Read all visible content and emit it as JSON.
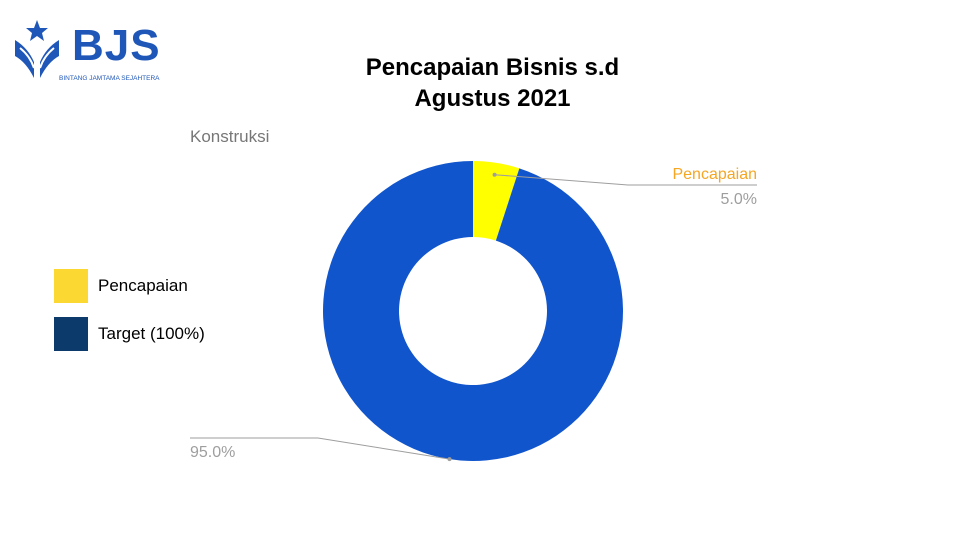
{
  "logo": {
    "text": "BJS",
    "subtext": "BINTANG JAMTAMA SEJAHTERA"
  },
  "title_lines": [
    "Pencapaian Bisnis s.d",
    "Agustus 2021"
  ],
  "chart_data": {
    "type": "pie",
    "subtitle": "Konstruksi",
    "slices": [
      {
        "label": "Pencapaian",
        "value": 5.0,
        "value_label": "5.0%",
        "color": "#ffff00"
      },
      {
        "label": "Target (100%)",
        "value": 95.0,
        "value_label": "95.0%",
        "color": "#1155cc"
      }
    ],
    "donut": true,
    "legend_position": "left",
    "legend": [
      {
        "label": "Pencapaian",
        "color": "#fcd932"
      },
      {
        "label": "Target (100%)",
        "color": "#0b3a6b"
      }
    ],
    "annotations": [
      {
        "slice": "Pencapaian",
        "name_text": "Pencapaian",
        "name_color": "#f5a623",
        "value_text": "5.0%"
      },
      {
        "slice": "Target (100%)",
        "value_text": "95.0%"
      }
    ]
  }
}
